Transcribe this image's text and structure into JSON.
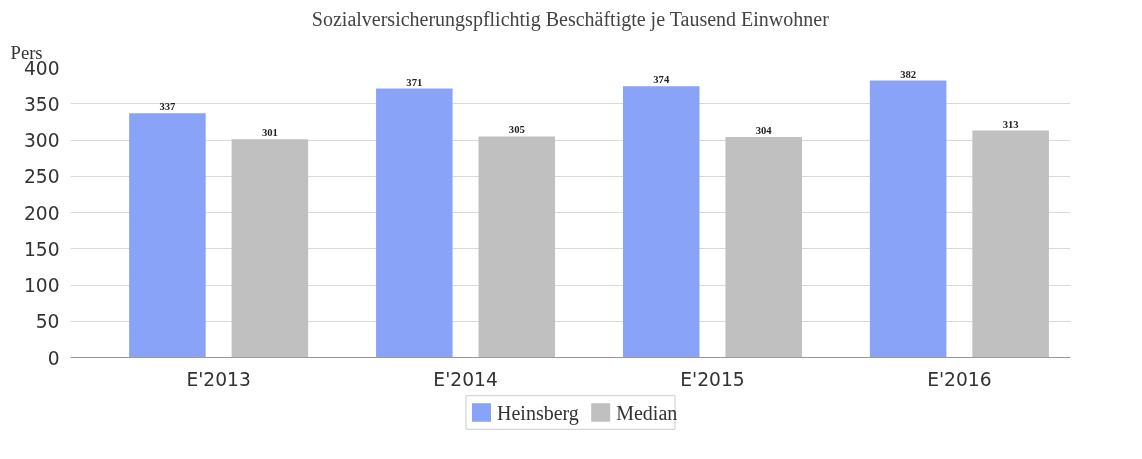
{
  "chart_data": {
    "type": "bar",
    "title": "Sozialversicherungspflichtig Beschäftigte je Tausend Einwohner",
    "ylabel": "Pers",
    "categories": [
      "E'2013",
      "E'2014",
      "E'2015",
      "E'2016"
    ],
    "series": [
      {
        "name": "Heinsberg",
        "color": "#88a3f8",
        "values": [
          337,
          371,
          374,
          382
        ]
      },
      {
        "name": "Median",
        "color": "#c0c0c0",
        "values": [
          301,
          305,
          304,
          313
        ]
      }
    ],
    "ylim": [
      0,
      400
    ],
    "yticks": [
      0,
      50,
      100,
      150,
      200,
      250,
      300,
      350,
      400
    ],
    "grid": "y",
    "legend": "bottom",
    "data_labels": true
  }
}
